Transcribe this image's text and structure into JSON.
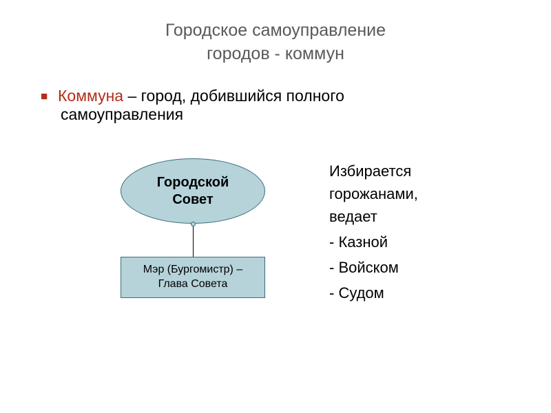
{
  "title": {
    "line1": "Городское самоуправление",
    "line2": "городов - коммун",
    "color": "#595959",
    "fontsize": 25
  },
  "definition": {
    "bullet_color": "#b32d1a",
    "term": "Коммуна",
    "term_color": "#b32d1a",
    "rest_line1": " – город, добившийся полного",
    "rest_line2": "самоуправления",
    "fontsize": 23
  },
  "diagram": {
    "node_fill": "#b6d3da",
    "node_border": "#3a6b7a",
    "connector_color": "#000000",
    "connector_dot_color": "#b6d3da",
    "ellipse": {
      "line1": "Городской",
      "line2": "Совет",
      "fontsize": 20,
      "fontweight": "bold"
    },
    "rect": {
      "line1": "Мэр (Бургомистр) –",
      "line2": "Глава Совета",
      "fontsize": 16
    }
  },
  "sidelist": {
    "fontsize": 22,
    "lead_line1": "Избирается",
    "lead_line2": "горожанами,",
    "lead_line3": "ведает",
    "items": [
      "- Казной",
      "- Войском",
      "- Судом"
    ]
  },
  "background_color": "#ffffff"
}
